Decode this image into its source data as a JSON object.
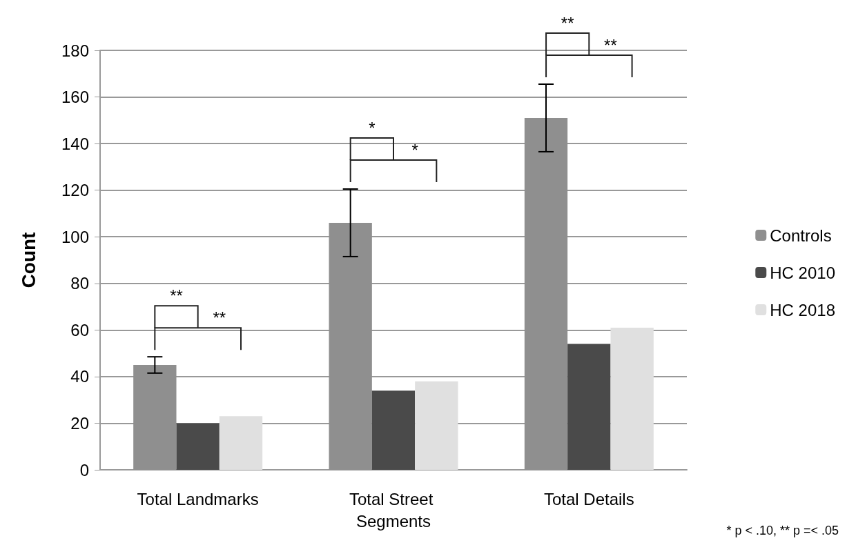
{
  "chart_data": {
    "type": "bar",
    "ylabel": "Count",
    "categories": [
      "Total Landmarks",
      "Total Street Segments",
      "Total Details"
    ],
    "series": [
      {
        "name": "Controls",
        "color": "#8f8f8f",
        "values": [
          45,
          106,
          151
        ],
        "errors": [
          3.5,
          14.5,
          14.5
        ]
      },
      {
        "name": "HC 2010",
        "color": "#4a4a4a",
        "values": [
          20,
          34,
          54
        ]
      },
      {
        "name": "HC 2018",
        "color": "#e0e0e0",
        "values": [
          23,
          38,
          61
        ]
      }
    ],
    "ylim": [
      0,
      180
    ],
    "yticks": [
      0,
      20,
      40,
      60,
      80,
      100,
      120,
      140,
      160,
      180
    ],
    "grid": "y",
    "legend": "right",
    "annotations": [
      "**",
      "**",
      "*",
      "*",
      "**",
      "**",
      "* p < .10, ** p =< .05"
    ]
  }
}
